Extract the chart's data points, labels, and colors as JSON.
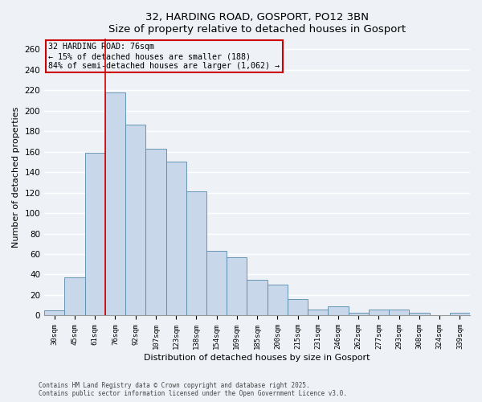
{
  "title": "32, HARDING ROAD, GOSPORT, PO12 3BN",
  "subtitle": "Size of property relative to detached houses in Gosport",
  "xlabel": "Distribution of detached houses by size in Gosport",
  "ylabel": "Number of detached properties",
  "categories": [
    "30sqm",
    "45sqm",
    "61sqm",
    "76sqm",
    "92sqm",
    "107sqm",
    "123sqm",
    "138sqm",
    "154sqm",
    "169sqm",
    "185sqm",
    "200sqm",
    "215sqm",
    "231sqm",
    "246sqm",
    "262sqm",
    "277sqm",
    "293sqm",
    "308sqm",
    "324sqm",
    "339sqm"
  ],
  "values": [
    5,
    37,
    159,
    218,
    186,
    163,
    150,
    121,
    63,
    57,
    35,
    30,
    16,
    6,
    9,
    3,
    6,
    6,
    3,
    0,
    3
  ],
  "bar_color": "#c8d8ea",
  "bar_edge_color": "#5588aa",
  "ylim": [
    0,
    270
  ],
  "yticks": [
    0,
    20,
    40,
    60,
    80,
    100,
    120,
    140,
    160,
    180,
    200,
    220,
    240,
    260
  ],
  "vline_idx": 3,
  "vline_color": "#cc0000",
  "annotation_title": "32 HARDING ROAD: 76sqm",
  "annotation_line1": "← 15% of detached houses are smaller (188)",
  "annotation_line2": "84% of semi-detached houses are larger (1,062) →",
  "annotation_box_color": "#cc0000",
  "footer_line1": "Contains HM Land Registry data © Crown copyright and database right 2025.",
  "footer_line2": "Contains public sector information licensed under the Open Government Licence v3.0.",
  "background_color": "#eef2f7",
  "grid_color": "#ffffff"
}
